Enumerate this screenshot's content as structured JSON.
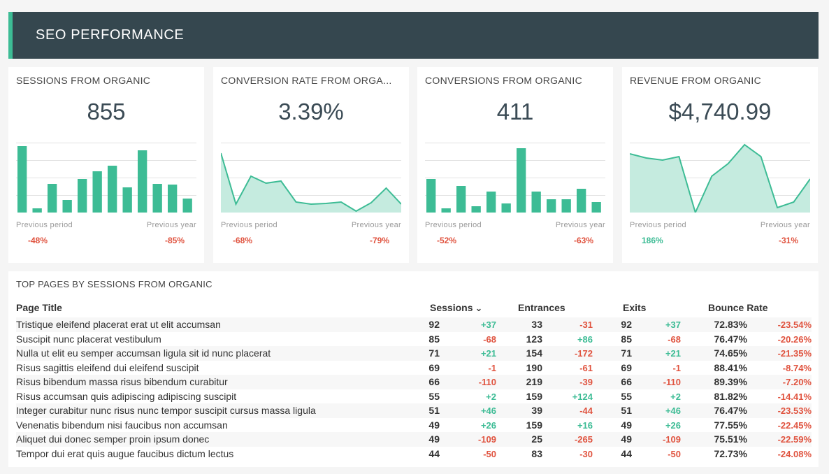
{
  "header": {
    "title": "SEO PERFORMANCE"
  },
  "colors": {
    "accent": "#3dbc95",
    "header_bg": "#35474f",
    "negative": "#e0533f",
    "positive": "#3dbc95"
  },
  "cards": [
    {
      "title": "SESSIONS FROM ORGANIC",
      "value": "855",
      "prev_label": "Previous period",
      "prev_value": "-48%",
      "prev_sign": "neg",
      "year_label": "Previous year",
      "year_value": "-85%",
      "year_sign": "neg"
    },
    {
      "title": "CONVERSION RATE FROM ORGA...",
      "value": "3.39%",
      "prev_label": "Previous period",
      "prev_value": "-68%",
      "prev_sign": "neg",
      "year_label": "Previous year",
      "year_value": "-79%",
      "year_sign": "neg"
    },
    {
      "title": "CONVERSIONS FROM ORGANIC",
      "value": "411",
      "prev_label": "Previous period",
      "prev_value": "-52%",
      "prev_sign": "neg",
      "year_label": "Previous year",
      "year_value": "-63%",
      "year_sign": "neg"
    },
    {
      "title": "REVENUE FROM ORGANIC",
      "value": "$4,740.99",
      "prev_label": "Previous period",
      "prev_value": "186%",
      "prev_sign": "pos",
      "year_label": "Previous year",
      "year_value": "-31%",
      "year_sign": "neg"
    }
  ],
  "chart_data": [
    {
      "type": "bar",
      "title": "SESSIONS FROM ORGANIC",
      "values": [
        95,
        6,
        41,
        18,
        48,
        59,
        67,
        36,
        89,
        41,
        40,
        20
      ],
      "ylim": [
        0,
        100
      ]
    },
    {
      "type": "area",
      "title": "CONVERSION RATE FROM ORGANIC",
      "values": [
        85,
        12,
        52,
        42,
        45,
        15,
        12,
        13,
        15,
        2,
        14,
        35,
        12
      ],
      "ylim": [
        0,
        100
      ]
    },
    {
      "type": "bar",
      "title": "CONVERSIONS FROM ORGANIC",
      "values": [
        48,
        6,
        38,
        9,
        30,
        13,
        92,
        30,
        19,
        19,
        34,
        15
      ],
      "ylim": [
        0,
        100
      ]
    },
    {
      "type": "area",
      "title": "REVENUE FROM ORGANIC",
      "values": [
        84,
        78,
        75,
        80,
        0,
        52,
        70,
        97,
        80,
        7,
        15,
        48
      ],
      "ylim": [
        0,
        100
      ]
    }
  ],
  "table": {
    "title": "TOP PAGES BY SESSIONS FROM ORGANIC",
    "columns": {
      "page": "Page Title",
      "sessions": "Sessions",
      "sort_icon": "⌄",
      "entrances": "Entrances",
      "exits": "Exits",
      "bounce": "Bounce Rate"
    },
    "rows": [
      {
        "title": "Tristique eleifend placerat erat ut elit accumsan",
        "sessions": "92",
        "sessions_chg": "+37",
        "entrances": "33",
        "entrances_chg": "-31",
        "exits": "92",
        "exits_chg": "+37",
        "bounce": "72.83%",
        "bounce_chg": "-23.54%"
      },
      {
        "title": "Suscipit nunc placerat vestibulum",
        "sessions": "85",
        "sessions_chg": "-68",
        "entrances": "123",
        "entrances_chg": "+86",
        "exits": "85",
        "exits_chg": "-68",
        "bounce": "76.47%",
        "bounce_chg": "-20.26%"
      },
      {
        "title": "Nulla ut elit eu semper accumsan ligula sit id nunc placerat",
        "sessions": "71",
        "sessions_chg": "+21",
        "entrances": "154",
        "entrances_chg": "-172",
        "exits": "71",
        "exits_chg": "+21",
        "bounce": "74.65%",
        "bounce_chg": "-21.35%"
      },
      {
        "title": "Risus sagittis eleifend dui eleifend suscipit",
        "sessions": "69",
        "sessions_chg": "-1",
        "entrances": "190",
        "entrances_chg": "-61",
        "exits": "69",
        "exits_chg": "-1",
        "bounce": "88.41%",
        "bounce_chg": "-8.74%"
      },
      {
        "title": "Risus bibendum massa risus bibendum curabitur",
        "sessions": "66",
        "sessions_chg": "-110",
        "entrances": "219",
        "entrances_chg": "-39",
        "exits": "66",
        "exits_chg": "-110",
        "bounce": "89.39%",
        "bounce_chg": "-7.20%"
      },
      {
        "title": "Risus accumsan quis adipiscing adipiscing suscipit",
        "sessions": "55",
        "sessions_chg": "+2",
        "entrances": "159",
        "entrances_chg": "+124",
        "exits": "55",
        "exits_chg": "+2",
        "bounce": "81.82%",
        "bounce_chg": "-14.41%"
      },
      {
        "title": "Integer curabitur nunc risus nunc tempor suscipit cursus massa ligula",
        "sessions": "51",
        "sessions_chg": "+46",
        "entrances": "39",
        "entrances_chg": "-44",
        "exits": "51",
        "exits_chg": "+46",
        "bounce": "76.47%",
        "bounce_chg": "-23.53%"
      },
      {
        "title": "Venenatis bibendum nisi faucibus non accumsan",
        "sessions": "49",
        "sessions_chg": "+26",
        "entrances": "159",
        "entrances_chg": "+16",
        "exits": "49",
        "exits_chg": "+26",
        "bounce": "77.55%",
        "bounce_chg": "-22.45%"
      },
      {
        "title": "Aliquet dui donec semper proin ipsum donec",
        "sessions": "49",
        "sessions_chg": "-109",
        "entrances": "25",
        "entrances_chg": "-265",
        "exits": "49",
        "exits_chg": "-109",
        "bounce": "75.51%",
        "bounce_chg": "-22.59%"
      },
      {
        "title": "Tempor dui erat quis augue faucibus dictum lectus",
        "sessions": "44",
        "sessions_chg": "-50",
        "entrances": "83",
        "entrances_chg": "-30",
        "exits": "44",
        "exits_chg": "-50",
        "bounce": "72.73%",
        "bounce_chg": "-24.08%"
      }
    ]
  }
}
